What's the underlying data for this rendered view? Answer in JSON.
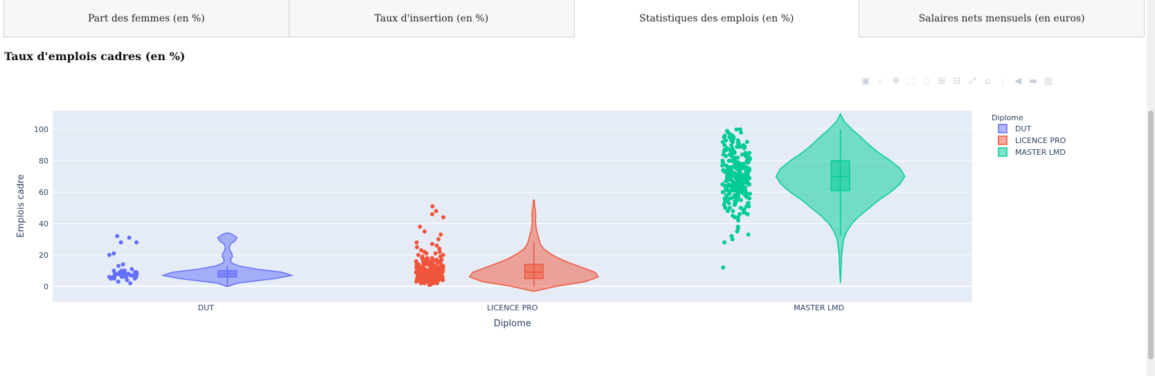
{
  "tabs": [
    {
      "label": "Part des femmes (en %)",
      "active": false
    },
    {
      "label": "Taux d'insertion (en %)",
      "active": false
    },
    {
      "label": "Statistiques des emplois (en %)",
      "active": true
    },
    {
      "label": "Salaires nets mensuels (en euros)",
      "active": false
    }
  ],
  "page_title": "Taux d'emplois cadres (en %)",
  "modebar": {
    "icons": [
      "camera-icon",
      "zoom-icon",
      "pan-icon",
      "box-select-icon",
      "lasso-icon",
      "zoom-in-icon",
      "zoom-out-icon",
      "autoscale-icon",
      "reset-axes-icon",
      "spike-lines-icon",
      "hover-closest-icon",
      "hover-compare-icon",
      "plotly-logo-icon"
    ],
    "glyphs": [
      "▣",
      "⌕",
      "✥",
      "⬚",
      "◌",
      "⊞",
      "⊟",
      "⤢",
      "⌂",
      "⋮",
      "◀",
      "▬",
      "▥"
    ]
  },
  "chart_data": {
    "type": "violin",
    "xlabel": "Diplome",
    "ylabel": "Emplois cadre",
    "ylim": [
      -10,
      112
    ],
    "yticks": [
      0,
      20,
      40,
      60,
      80,
      100
    ],
    "grid": true,
    "categories": [
      "DUT",
      "LICENCE PRO",
      "MASTER LMD"
    ],
    "legend": {
      "title": "Diplome",
      "placement": "top-right"
    },
    "series": [
      {
        "name": "DUT",
        "color": "#636efa",
        "box": {
          "q1": 6,
          "median": 8,
          "q3": 10,
          "whisker_low": 0,
          "whisker_high": 13
        },
        "violin_range": [
          0,
          34
        ],
        "density": [
          [
            0,
            0.02
          ],
          [
            2,
            0.15
          ],
          [
            5,
            0.75
          ],
          [
            7,
            1.0
          ],
          [
            9,
            0.85
          ],
          [
            11,
            0.45
          ],
          [
            13,
            0.18
          ],
          [
            15,
            0.06
          ],
          [
            17,
            0.05
          ],
          [
            19,
            0.08
          ],
          [
            21,
            0.07
          ],
          [
            23,
            0.04
          ],
          [
            25,
            0.03
          ],
          [
            27,
            0.05
          ],
          [
            29,
            0.12
          ],
          [
            31,
            0.15
          ],
          [
            33,
            0.08
          ],
          [
            34,
            0.02
          ]
        ],
        "points": [
          6,
          7,
          5,
          8,
          9,
          6,
          7,
          10,
          8,
          9,
          6,
          7,
          5,
          8,
          11,
          7,
          6,
          9,
          4,
          3,
          2,
          10,
          8,
          7,
          6,
          13,
          14,
          20,
          21,
          28,
          28,
          31,
          32,
          7,
          8,
          6,
          9,
          5,
          8,
          7,
          6,
          9,
          10,
          7,
          8
        ]
      },
      {
        "name": "LICENCE PRO",
        "color": "#ef553b",
        "box": {
          "q1": 5,
          "median": 9,
          "q3": 14,
          "whisker_low": 0,
          "whisker_high": 28
        },
        "violin_range": [
          -3,
          55
        ],
        "density": [
          [
            -3,
            0.02
          ],
          [
            0,
            0.35
          ],
          [
            3,
            0.8
          ],
          [
            6,
            1.0
          ],
          [
            9,
            0.95
          ],
          [
            12,
            0.75
          ],
          [
            15,
            0.55
          ],
          [
            18,
            0.38
          ],
          [
            21,
            0.25
          ],
          [
            24,
            0.15
          ],
          [
            27,
            0.1
          ],
          [
            30,
            0.08
          ],
          [
            33,
            0.06
          ],
          [
            36,
            0.04
          ],
          [
            39,
            0.03
          ],
          [
            42,
            0.025
          ],
          [
            45,
            0.03
          ],
          [
            48,
            0.025
          ],
          [
            51,
            0.015
          ],
          [
            55,
            0.005
          ]
        ],
        "points": [
          2,
          3,
          4,
          5,
          6,
          7,
          8,
          9,
          10,
          11,
          12,
          13,
          14,
          15,
          16,
          17,
          18,
          19,
          20,
          21,
          22,
          24,
          25,
          3,
          5,
          7,
          9,
          11,
          6,
          8,
          10,
          12,
          4,
          6,
          8,
          5,
          7,
          9,
          11,
          13,
          3,
          5,
          7,
          9,
          2,
          4,
          6,
          8,
          10,
          12,
          14,
          1,
          3,
          5,
          7,
          9,
          11,
          6,
          8,
          10,
          4,
          6,
          8,
          5,
          7,
          9,
          11,
          13,
          15,
          17,
          3,
          5,
          7,
          9,
          11,
          6,
          8,
          10,
          4,
          6,
          8,
          5,
          7,
          9,
          2,
          4,
          6,
          8,
          10,
          12,
          7,
          9,
          11,
          13,
          6,
          8,
          10,
          12,
          14,
          16,
          18,
          5,
          7,
          9,
          3,
          5,
          7,
          4,
          6,
          8,
          10,
          12,
          14,
          2,
          4,
          6,
          8,
          28,
          30,
          33,
          35,
          38,
          44,
          46,
          48,
          51,
          26,
          27,
          22,
          23,
          20,
          21,
          19,
          18,
          17,
          16,
          3,
          4,
          5,
          6,
          7,
          8,
          9,
          10,
          11,
          12,
          1,
          2,
          3,
          4,
          5,
          6,
          7,
          8,
          9,
          10,
          11,
          12,
          13,
          14,
          15,
          5,
          6,
          7,
          8,
          9,
          10,
          11,
          12,
          13,
          3,
          4,
          5,
          6,
          7,
          8,
          9,
          10,
          2,
          3,
          4,
          5,
          6,
          7,
          8,
          9,
          10,
          11,
          12,
          13,
          14,
          15,
          16,
          17,
          4,
          5,
          6,
          7,
          8,
          9,
          10,
          11,
          12,
          13,
          14,
          15,
          16,
          6,
          7,
          8,
          9,
          10,
          11,
          12,
          13,
          14,
          15,
          5,
          6,
          7,
          8,
          9,
          10,
          11,
          12,
          13,
          14,
          15,
          16,
          17,
          18
        ]
      },
      {
        "name": "MASTER LMD",
        "color": "#00cc96",
        "box": {
          "q1": 61,
          "median": 70,
          "q3": 80,
          "whisker_low": 32,
          "whisker_high": 100
        },
        "violin_range": [
          2,
          110
        ],
        "density": [
          [
            2,
            0.0
          ],
          [
            10,
            0.01
          ],
          [
            20,
            0.02
          ],
          [
            30,
            0.05
          ],
          [
            35,
            0.1
          ],
          [
            40,
            0.18
          ],
          [
            45,
            0.3
          ],
          [
            50,
            0.45
          ],
          [
            55,
            0.6
          ],
          [
            60,
            0.78
          ],
          [
            65,
            0.92
          ],
          [
            70,
            1.0
          ],
          [
            75,
            0.93
          ],
          [
            80,
            0.78
          ],
          [
            85,
            0.6
          ],
          [
            90,
            0.45
          ],
          [
            95,
            0.32
          ],
          [
            100,
            0.18
          ],
          [
            105,
            0.06
          ],
          [
            110,
            0.0
          ]
        ],
        "points": [
          12,
          28,
          30,
          32,
          33,
          35,
          37,
          38,
          42,
          44,
          45,
          46,
          47,
          48,
          49,
          50,
          51,
          52,
          53,
          54,
          55,
          55,
          56,
          56,
          57,
          57,
          58,
          58,
          59,
          59,
          60,
          60,
          60,
          61,
          61,
          61,
          62,
          62,
          62,
          63,
          63,
          63,
          64,
          64,
          64,
          65,
          65,
          65,
          65,
          66,
          66,
          66,
          66,
          67,
          67,
          67,
          67,
          68,
          68,
          68,
          68,
          69,
          69,
          69,
          69,
          70,
          70,
          70,
          70,
          70,
          71,
          71,
          71,
          71,
          72,
          72,
          72,
          72,
          73,
          73,
          73,
          73,
          74,
          74,
          74,
          75,
          75,
          75,
          75,
          76,
          76,
          76,
          77,
          77,
          77,
          78,
          78,
          78,
          79,
          79,
          79,
          80,
          80,
          80,
          81,
          81,
          82,
          82,
          83,
          83,
          84,
          84,
          85,
          85,
          86,
          86,
          87,
          87,
          88,
          88,
          89,
          89,
          90,
          90,
          91,
          91,
          92,
          92,
          93,
          93,
          94,
          95,
          96,
          97,
          98,
          99,
          100,
          62,
          64,
          66,
          68,
          70,
          72,
          74,
          76,
          78,
          80,
          65,
          67,
          69,
          71,
          73,
          75,
          63,
          66,
          69,
          72,
          75,
          78,
          61,
          64,
          67,
          70,
          73,
          76,
          79,
          82,
          85,
          88,
          60,
          63,
          66,
          69,
          72,
          75,
          58,
          61,
          64,
          67,
          70,
          73,
          76,
          56,
          59,
          62,
          65,
          68,
          71,
          74,
          77,
          80,
          83,
          86,
          89,
          92,
          95,
          54,
          57,
          60,
          63,
          66,
          69,
          72,
          52,
          55,
          58,
          61,
          64,
          67,
          70,
          73,
          76,
          79,
          82,
          85,
          50,
          53,
          56,
          59,
          62,
          65,
          68,
          48,
          51,
          54,
          57,
          60,
          63,
          66,
          69,
          72,
          75,
          78,
          81,
          84,
          87,
          90,
          93,
          96,
          46,
          49,
          52,
          55,
          58,
          61,
          64,
          67,
          70,
          73,
          76,
          79,
          44,
          47,
          50,
          53,
          56,
          59,
          62,
          65,
          68,
          71,
          74,
          77,
          80,
          83,
          86,
          89,
          92,
          95,
          98,
          100
        ]
      }
    ]
  }
}
